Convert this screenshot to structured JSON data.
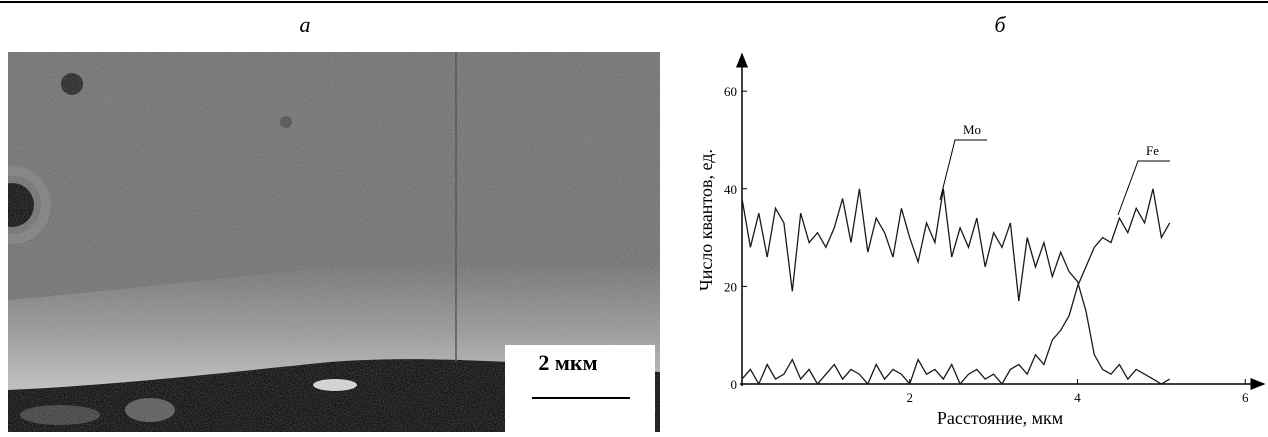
{
  "panel_labels": [
    "а",
    "б"
  ],
  "scale_bar": "2 мкм",
  "chart_data": {
    "type": "line",
    "xlabel": "Расстояние, мкм",
    "ylabel": "Число квантов, ед.",
    "x": [
      0,
      0.1,
      0.2,
      0.3,
      0.4,
      0.5,
      0.6,
      0.7,
      0.8,
      0.9,
      1.0,
      1.1,
      1.2,
      1.3,
      1.4,
      1.5,
      1.6,
      1.7,
      1.8,
      1.9,
      2.0,
      2.1,
      2.2,
      2.3,
      2.4,
      2.5,
      2.6,
      2.7,
      2.8,
      2.9,
      3.0,
      3.1,
      3.2,
      3.3,
      3.4,
      3.5,
      3.6,
      3.7,
      3.8,
      3.9,
      4.0,
      4.1,
      4.2,
      4.3,
      4.4,
      4.5,
      4.6,
      4.7,
      4.8,
      4.9,
      5.0,
      5.1
    ],
    "series": [
      {
        "name": "Mo",
        "color": "#1a1a1a",
        "values": [
          38,
          28,
          35,
          26,
          36,
          33,
          19,
          35,
          29,
          31,
          28,
          32,
          38,
          29,
          40,
          27,
          34,
          31,
          26,
          36,
          30,
          25,
          33,
          29,
          40,
          26,
          32,
          28,
          34,
          24,
          31,
          28,
          33,
          17,
          30,
          24,
          29,
          22,
          27,
          23,
          21,
          15,
          6,
          3,
          2,
          4,
          1,
          3,
          2,
          1,
          0,
          1
        ]
      },
      {
        "name": "Fe",
        "color": "#1a1a1a",
        "values": [
          1,
          3,
          0,
          4,
          1,
          2,
          5,
          1,
          3,
          0,
          2,
          4,
          1,
          3,
          2,
          0,
          4,
          1,
          3,
          2,
          0,
          5,
          2,
          3,
          1,
          4,
          0,
          2,
          3,
          1,
          2,
          0,
          3,
          4,
          2,
          6,
          4,
          9,
          11,
          14,
          20,
          24,
          28,
          30,
          29,
          34,
          31,
          36,
          33,
          40,
          30,
          33
        ]
      }
    ],
    "xlim": [
      0,
      6.2
    ],
    "ylim": [
      0,
      67
    ],
    "xticks": [
      2,
      4,
      6
    ],
    "yticks": [
      0,
      20,
      40,
      60
    ]
  }
}
